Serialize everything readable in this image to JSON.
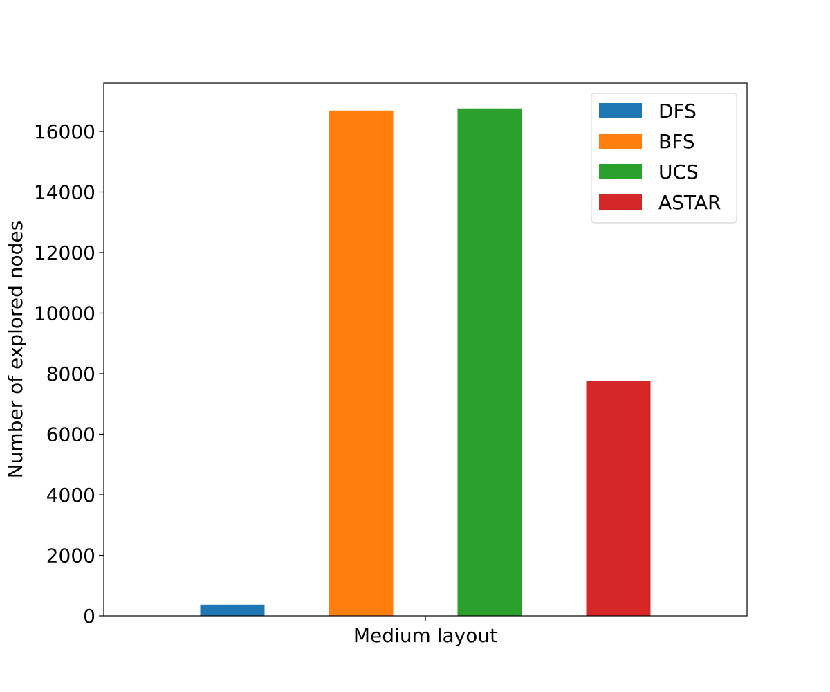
{
  "chart_data": {
    "type": "bar",
    "categories": [
      "Medium layout"
    ],
    "series": [
      {
        "name": "DFS",
        "values": [
          370
        ],
        "color": "#1f77b4"
      },
      {
        "name": "BFS",
        "values": [
          16690
        ],
        "color": "#ff7f0e"
      },
      {
        "name": "UCS",
        "values": [
          16760
        ],
        "color": "#2ca02c"
      },
      {
        "name": "ASTAR",
        "values": [
          7760
        ],
        "color": "#d62728"
      }
    ],
    "title": "",
    "xlabel": "Medium layout",
    "ylabel": "Number of explored nodes",
    "ylim": [
      0,
      17600
    ],
    "yticks": [
      0,
      2000,
      4000,
      6000,
      8000,
      10000,
      12000,
      14000,
      16000
    ],
    "ytick_labels": [
      "0",
      "2000",
      "4000",
      "6000",
      "8000",
      "10000",
      "12000",
      "14000",
      "16000"
    ],
    "grid": false,
    "legend_position": "top-right"
  }
}
